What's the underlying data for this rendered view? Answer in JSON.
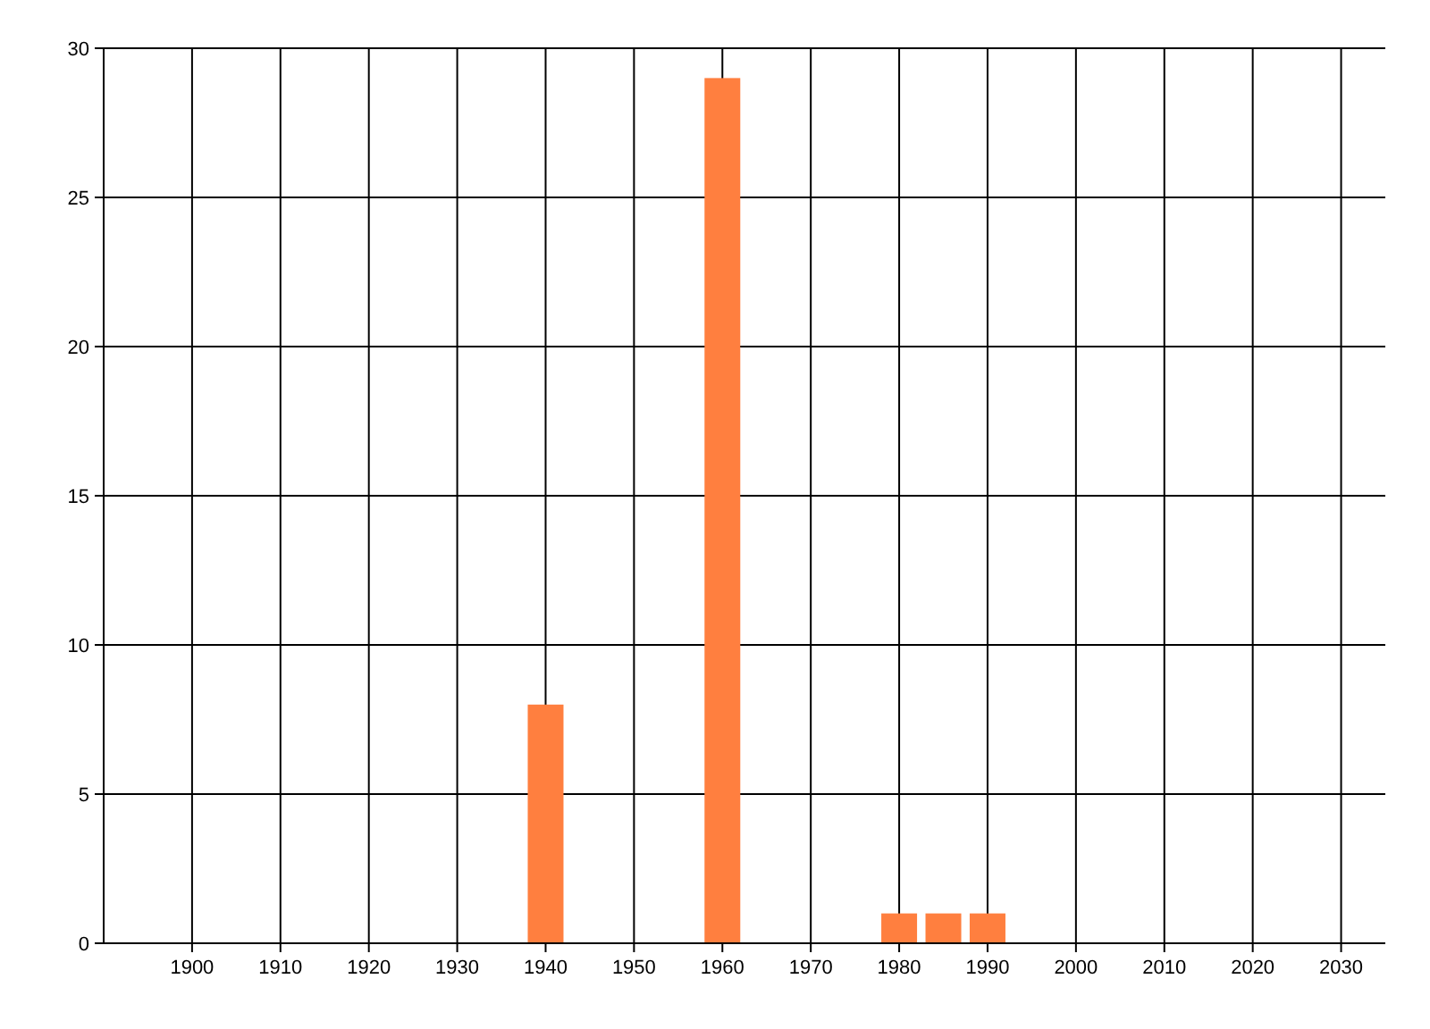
{
  "chart_data": {
    "type": "bar",
    "x": [
      1940,
      1960,
      1980,
      1985,
      1990
    ],
    "values": [
      8,
      29,
      1,
      1,
      1
    ],
    "color": "#ff7f3f",
    "xlim": [
      1890,
      2035
    ],
    "xticks": [
      1900,
      1910,
      1920,
      1930,
      1940,
      1950,
      1960,
      1970,
      1980,
      1990,
      2000,
      2010,
      2020,
      2030
    ],
    "ylim": [
      0,
      30
    ],
    "yticks": [
      0,
      5,
      10,
      15,
      20,
      25,
      30
    ],
    "grid": true
  }
}
